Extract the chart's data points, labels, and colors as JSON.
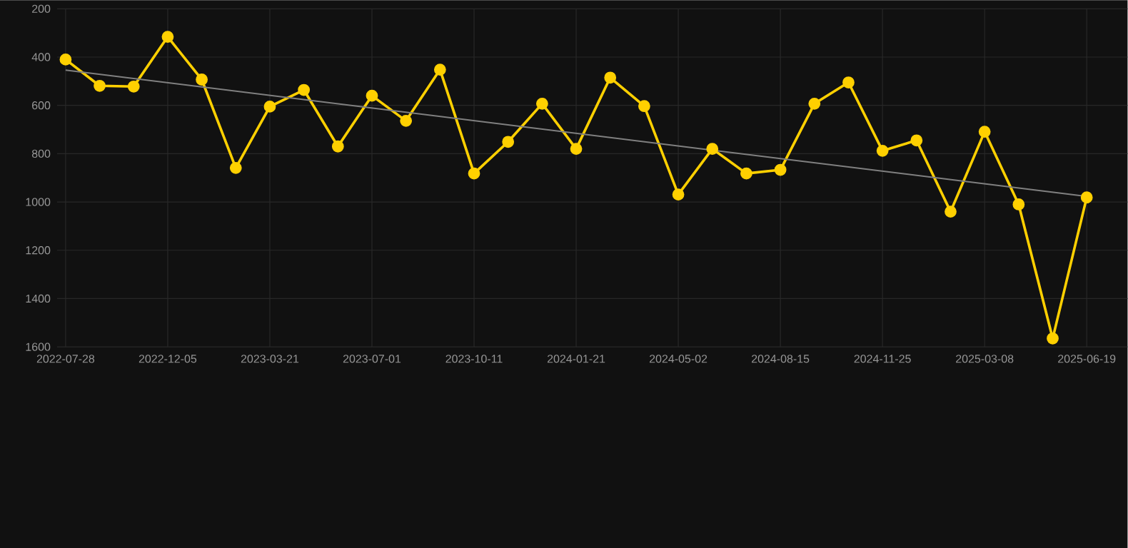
{
  "chart_data": {
    "type": "line",
    "categories": [
      "2022-07-28",
      null,
      null,
      "2022-12-05",
      null,
      null,
      "2023-03-21",
      null,
      null,
      "2023-07-01",
      null,
      null,
      "2023-10-11",
      null,
      null,
      "2024-01-21",
      null,
      null,
      "2024-05-02",
      null,
      null,
      "2024-08-15",
      null,
      null,
      "2024-11-25",
      null,
      null,
      "2025-03-08",
      null,
      null,
      "2025-06-19"
    ],
    "series": [
      {
        "color": "#ffd000",
        "marker": "circle",
        "values": [
          410,
          519,
          522,
          316,
          493,
          859,
          605,
          536,
          770,
          560,
          664,
          452,
          882,
          751,
          593,
          780,
          485,
          603,
          969,
          780,
          882,
          867,
          593,
          505,
          788,
          745,
          1040,
          709,
          1010,
          1565,
          981
        ]
      },
      {
        "type": "line",
        "color": "#808080",
        "marker": "none",
        "values": [
          454,
          null,
          null,
          null,
          null,
          null,
          null,
          null,
          null,
          null,
          null,
          null,
          null,
          null,
          null,
          null,
          null,
          null,
          null,
          null,
          null,
          null,
          null,
          null,
          null,
          null,
          null,
          null,
          null,
          null,
          977
        ]
      }
    ],
    "ylim": [
      1600,
      200
    ],
    "yticks": [
      200,
      400,
      600,
      800,
      1000,
      1200,
      1400,
      1600
    ],
    "grid": true
  }
}
